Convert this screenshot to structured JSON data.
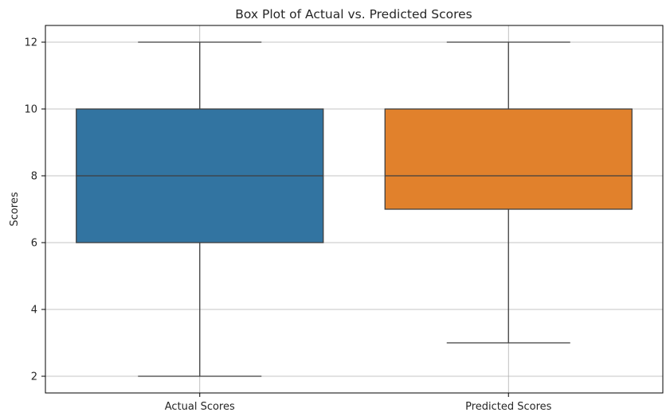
{
  "chart_data": {
    "type": "box",
    "title": "Box Plot of Actual vs. Predicted Scores",
    "xlabel": "",
    "ylabel": "Scores",
    "ylim": [
      1.5,
      12.5
    ],
    "yticks": [
      2,
      4,
      6,
      8,
      10,
      12
    ],
    "grid": true,
    "categories": [
      "Actual Scores",
      "Predicted Scores"
    ],
    "boxes": [
      {
        "category": "Actual Scores",
        "min": 2,
        "q1": 6,
        "median": 8,
        "q3": 10,
        "max": 12,
        "color": "#3274a1"
      },
      {
        "category": "Predicted Scores",
        "min": 3,
        "q1": 7,
        "median": 8,
        "q3": 10,
        "max": 12,
        "color": "#e1812c"
      }
    ]
  },
  "colors": {
    "grid": "#b0b0b0",
    "line": "#3f3f3f",
    "axis": "#000000"
  }
}
